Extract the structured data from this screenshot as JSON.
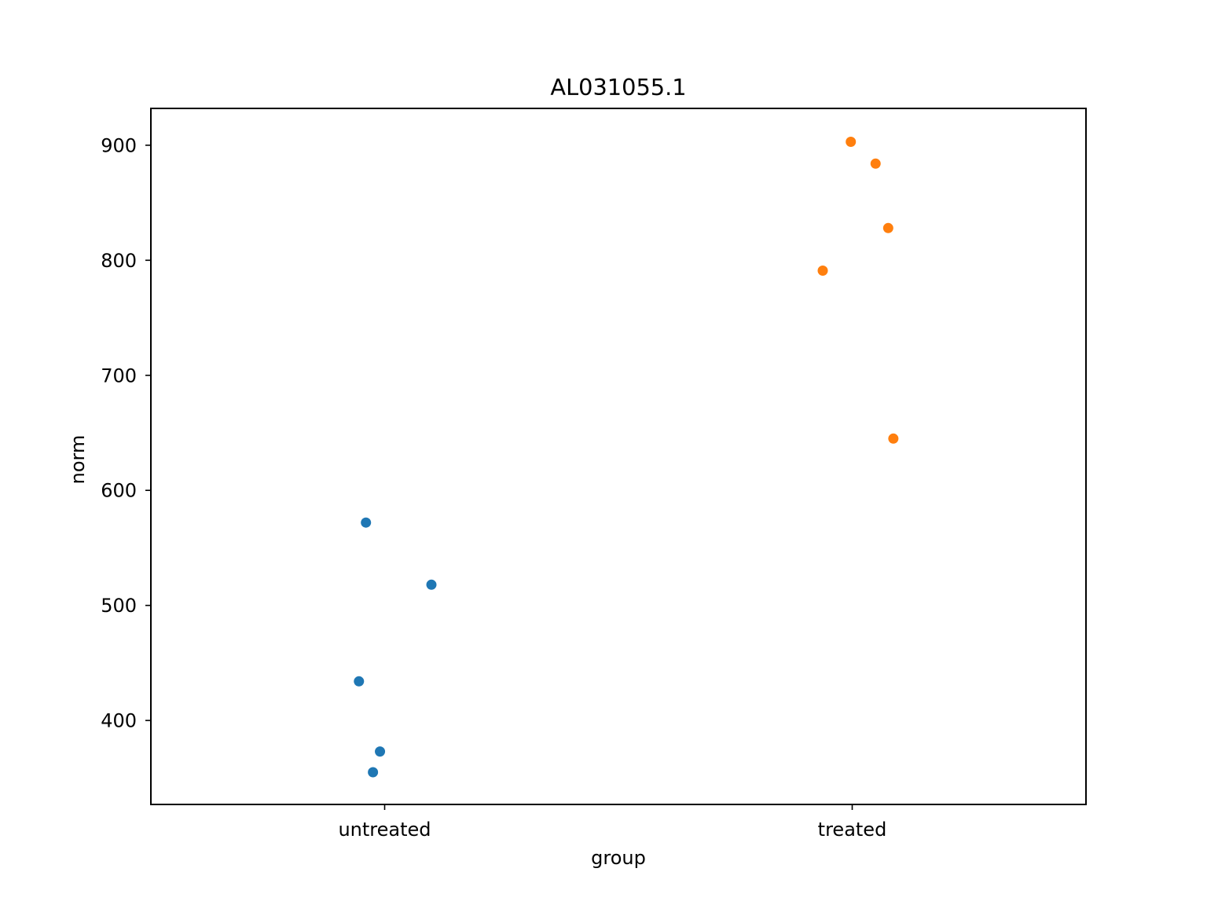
{
  "chart_data": {
    "type": "scatter",
    "title": "AL031055.1",
    "xlabel": "group",
    "ylabel": "norm",
    "categories": [
      "untreated",
      "treated"
    ],
    "ylim": [
      327,
      932
    ],
    "yticks": [
      400,
      500,
      600,
      700,
      800,
      900
    ],
    "grid": false,
    "legend": "none",
    "series": [
      {
        "category": "untreated",
        "color": "#1f77b4",
        "points": [
          {
            "jitter": -0.04,
            "y": 572
          },
          {
            "jitter": 0.1,
            "y": 518
          },
          {
            "jitter": -0.055,
            "y": 434
          },
          {
            "jitter": -0.01,
            "y": 373
          },
          {
            "jitter": -0.025,
            "y": 355
          }
        ]
      },
      {
        "category": "treated",
        "color": "#ff7f0e",
        "points": [
          {
            "jitter": -0.003,
            "y": 903
          },
          {
            "jitter": 0.05,
            "y": 884
          },
          {
            "jitter": 0.077,
            "y": 828
          },
          {
            "jitter": -0.063,
            "y": 791
          },
          {
            "jitter": 0.088,
            "y": 645
          }
        ]
      }
    ]
  }
}
